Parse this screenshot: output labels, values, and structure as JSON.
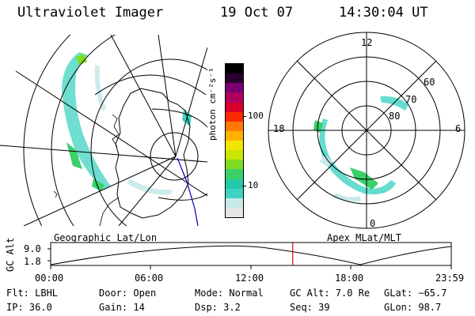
{
  "header": {
    "instrument": "Ultraviolet Imager",
    "date": "19 Oct 07",
    "time": "14:30:04 UT"
  },
  "colorbar": {
    "unit_label": "photon cm⁻²s⁻¹",
    "ticks": [
      "100",
      "10"
    ],
    "colors": [
      "#e6e6e6",
      "#c9e9e9",
      "#3fd3c2",
      "#26c9a8",
      "#3ad06a",
      "#7fdc1e",
      "#c9e600",
      "#f2e600",
      "#ffb000",
      "#ff7a00",
      "#ff2a00",
      "#d8002a",
      "#b0005e",
      "#7a0070",
      "#2a0030",
      "#000000"
    ]
  },
  "geo_map": {
    "label": "Geographic Lat/Lon"
  },
  "polar_map": {
    "label": "Apex MLat/MLT",
    "mlt_labels": [
      "12",
      "18",
      "6",
      "0"
    ],
    "mlat_labels": [
      "60",
      "70",
      "80"
    ]
  },
  "altitude_plot": {
    "ylabel": "GC Alt",
    "yticks": [
      "9.0",
      "1.8"
    ],
    "xticks": [
      "00:00",
      "06:00",
      "12:00",
      "18:00",
      "23:59"
    ],
    "current_marker_hours": 14.5,
    "marker_color": "#e00000"
  },
  "footer": {
    "flt": "Flt: LBHL",
    "ip": "IP: 36.0",
    "door": "Door: Open",
    "gain": "Gain: 14",
    "mode": "Mode: Normal",
    "dsp": "Dsp:    3.2",
    "gc_alt": "GC Alt: 7.0 Re",
    "seq": "Seq: 39",
    "glat": "GLat: −65.7",
    "glon": "GLon:  98.7"
  }
}
